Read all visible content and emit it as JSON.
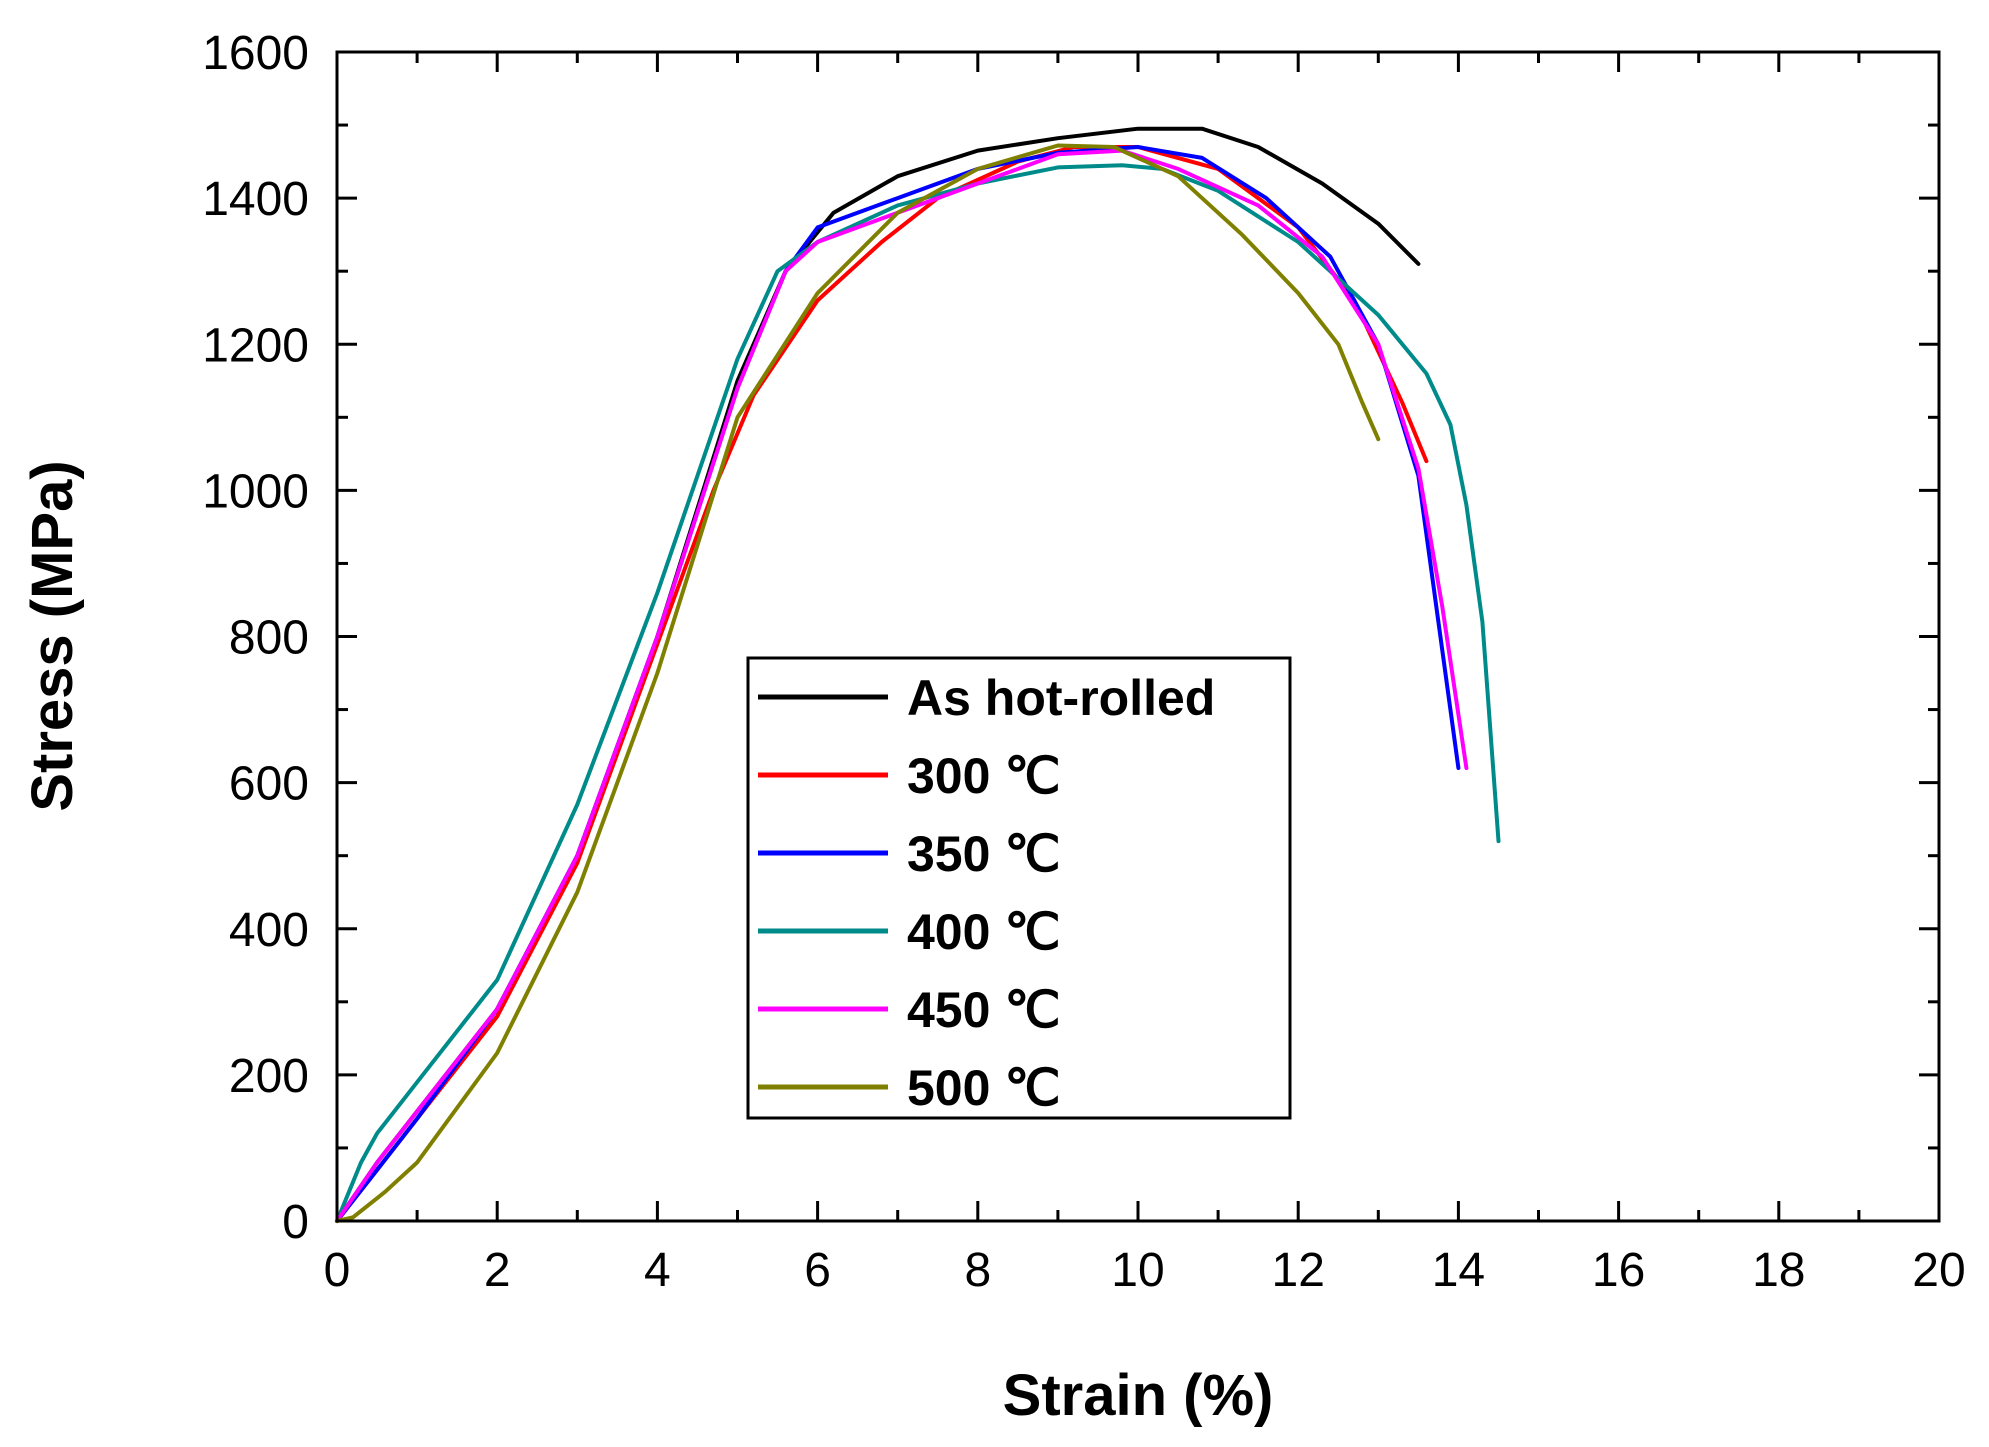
{
  "chart_data": {
    "type": "line",
    "title": "",
    "xlabel": "Strain (%)",
    "ylabel": "Stress (MPa)",
    "xlim": [
      0,
      20
    ],
    "ylim": [
      0,
      1600
    ],
    "xticks": [
      "0",
      "2",
      "4",
      "6",
      "8",
      "10",
      "12",
      "14",
      "16",
      "18",
      "20"
    ],
    "yticks": [
      "0",
      "200",
      "400",
      "600",
      "800",
      "1000",
      "1200",
      "1400",
      "1600"
    ],
    "grid": false,
    "legend_position": "center-left",
    "series": [
      {
        "name": "As hot-rolled",
        "color": "#000000",
        "points": [
          [
            0,
            0
          ],
          [
            0.5,
            80
          ],
          [
            1,
            150
          ],
          [
            2,
            290
          ],
          [
            3,
            500
          ],
          [
            4,
            800
          ],
          [
            5,
            1150
          ],
          [
            5.6,
            1300
          ],
          [
            6.2,
            1380
          ],
          [
            7,
            1430
          ],
          [
            8,
            1465
          ],
          [
            9,
            1482
          ],
          [
            10,
            1495
          ],
          [
            10.8,
            1495
          ],
          [
            11.5,
            1470
          ],
          [
            12.3,
            1420
          ],
          [
            13,
            1365
          ],
          [
            13.5,
            1310
          ]
        ]
      },
      {
        "name": "300 ℃",
        "color": "#ff0000",
        "points": [
          [
            0,
            0
          ],
          [
            0.5,
            70
          ],
          [
            1,
            140
          ],
          [
            2,
            280
          ],
          [
            3,
            490
          ],
          [
            4,
            790
          ],
          [
            4.7,
            1000
          ],
          [
            5.2,
            1130
          ],
          [
            6,
            1260
          ],
          [
            6.8,
            1340
          ],
          [
            7.5,
            1400
          ],
          [
            8.5,
            1450
          ],
          [
            9.2,
            1470
          ],
          [
            10,
            1470
          ],
          [
            11,
            1440
          ],
          [
            12,
            1360
          ],
          [
            12.7,
            1260
          ],
          [
            13.3,
            1120
          ],
          [
            13.6,
            1040
          ]
        ]
      },
      {
        "name": "350 ℃",
        "color": "#0000ff",
        "points": [
          [
            0,
            0
          ],
          [
            0.5,
            70
          ],
          [
            1,
            140
          ],
          [
            2,
            290
          ],
          [
            3,
            500
          ],
          [
            4,
            800
          ],
          [
            5,
            1140
          ],
          [
            5.6,
            1300
          ],
          [
            6,
            1360
          ],
          [
            7,
            1400
          ],
          [
            8,
            1440
          ],
          [
            9,
            1462
          ],
          [
            10,
            1470
          ],
          [
            10.8,
            1455
          ],
          [
            11.6,
            1400
          ],
          [
            12.4,
            1320
          ],
          [
            13,
            1200
          ],
          [
            13.5,
            1020
          ],
          [
            13.8,
            780
          ],
          [
            14,
            620
          ]
        ]
      },
      {
        "name": "400 ℃",
        "color": "#008b8b",
        "points": [
          [
            0,
            0
          ],
          [
            0.3,
            80
          ],
          [
            0.5,
            120
          ],
          [
            1,
            190
          ],
          [
            2,
            330
          ],
          [
            3,
            570
          ],
          [
            4,
            860
          ],
          [
            5,
            1180
          ],
          [
            5.5,
            1300
          ],
          [
            6,
            1340
          ],
          [
            7,
            1390
          ],
          [
            8,
            1420
          ],
          [
            9,
            1442
          ],
          [
            9.8,
            1445
          ],
          [
            10.3,
            1440
          ],
          [
            11,
            1410
          ],
          [
            12,
            1340
          ],
          [
            13,
            1240
          ],
          [
            13.6,
            1160
          ],
          [
            13.9,
            1090
          ],
          [
            14.1,
            980
          ],
          [
            14.3,
            820
          ],
          [
            14.5,
            520
          ]
        ]
      },
      {
        "name": "450 ℃",
        "color": "#ff00ff",
        "points": [
          [
            0,
            0
          ],
          [
            0.5,
            80
          ],
          [
            1,
            150
          ],
          [
            2,
            290
          ],
          [
            3,
            500
          ],
          [
            4,
            800
          ],
          [
            5,
            1140
          ],
          [
            5.6,
            1300
          ],
          [
            6,
            1340
          ],
          [
            7,
            1380
          ],
          [
            8,
            1420
          ],
          [
            9,
            1460
          ],
          [
            9.8,
            1465
          ],
          [
            10.5,
            1440
          ],
          [
            11.5,
            1390
          ],
          [
            12.3,
            1320
          ],
          [
            13,
            1200
          ],
          [
            13.5,
            1030
          ],
          [
            13.8,
            840
          ],
          [
            14.1,
            620
          ]
        ]
      },
      {
        "name": "500 ℃",
        "color": "#808000",
        "points": [
          [
            0,
            0
          ],
          [
            0.2,
            5
          ],
          [
            0.6,
            40
          ],
          [
            1,
            80
          ],
          [
            2,
            230
          ],
          [
            3,
            450
          ],
          [
            4,
            750
          ],
          [
            5,
            1100
          ],
          [
            6,
            1270
          ],
          [
            7,
            1380
          ],
          [
            8,
            1440
          ],
          [
            9,
            1472
          ],
          [
            9.7,
            1470
          ],
          [
            10.5,
            1430
          ],
          [
            11.3,
            1350
          ],
          [
            12,
            1270
          ],
          [
            12.5,
            1200
          ],
          [
            12.8,
            1120
          ],
          [
            13,
            1070
          ]
        ]
      }
    ]
  }
}
